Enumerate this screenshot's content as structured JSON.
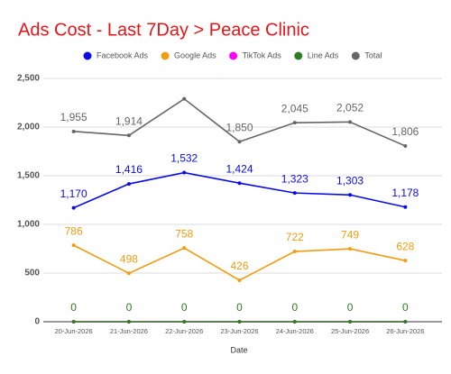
{
  "chart_data": {
    "type": "line",
    "title": "Ads Cost - Last 7Day > Peace Clinic",
    "x_label": "Date",
    "categories": [
      "20-Jun-2026",
      "21-Jun-2026",
      "22-Jun-2026",
      "23-Jun-2026",
      "24-Jun-2026",
      "25-Jun-2026",
      "26-Jun-2026"
    ],
    "series": [
      {
        "name": "Facebook Ads",
        "color": "#0a0ae6",
        "values": [
          1170,
          1416,
          1532,
          1424,
          1323,
          1303,
          1178
        ],
        "value_labels": [
          "1,170",
          "1,416",
          "1,532",
          "1,424",
          "1,323",
          "1,303",
          "1,178"
        ]
      },
      {
        "name": "Google Ads",
        "color": "#f39c12",
        "values": [
          786,
          498,
          758,
          426,
          722,
          749,
          628
        ],
        "data_labels": true
      },
      {
        "name": "TikTok Ads",
        "color": "#ff00ff",
        "values": [
          0,
          0,
          0,
          0,
          0,
          0,
          0
        ],
        "data_labels": false
      },
      {
        "name": "Line Ads",
        "color": "#2e7d1e",
        "values": [
          0,
          0,
          0,
          0,
          0,
          0,
          0
        ],
        "data_labels": true
      },
      {
        "name": "Total",
        "color": "#666666",
        "values": [
          1955,
          1914,
          2290,
          1850,
          2045,
          2052,
          1806
        ],
        "value_labels": [
          "1,955",
          "1,914",
          null,
          "1,850",
          "2,045",
          "2,052",
          "1,806"
        ]
      }
    ],
    "ylim": [
      0,
      2500
    ],
    "yticks": [
      0,
      500,
      {
        "value": 1000,
        "label": "1,000"
      },
      {
        "value": 1500,
        "label": "1,500"
      },
      {
        "value": 2000,
        "label": "2,000"
      },
      {
        "value": 2500,
        "label": "2,500"
      }
    ],
    "grid": true,
    "title_color": "#e8141a",
    "legend": "top"
  }
}
